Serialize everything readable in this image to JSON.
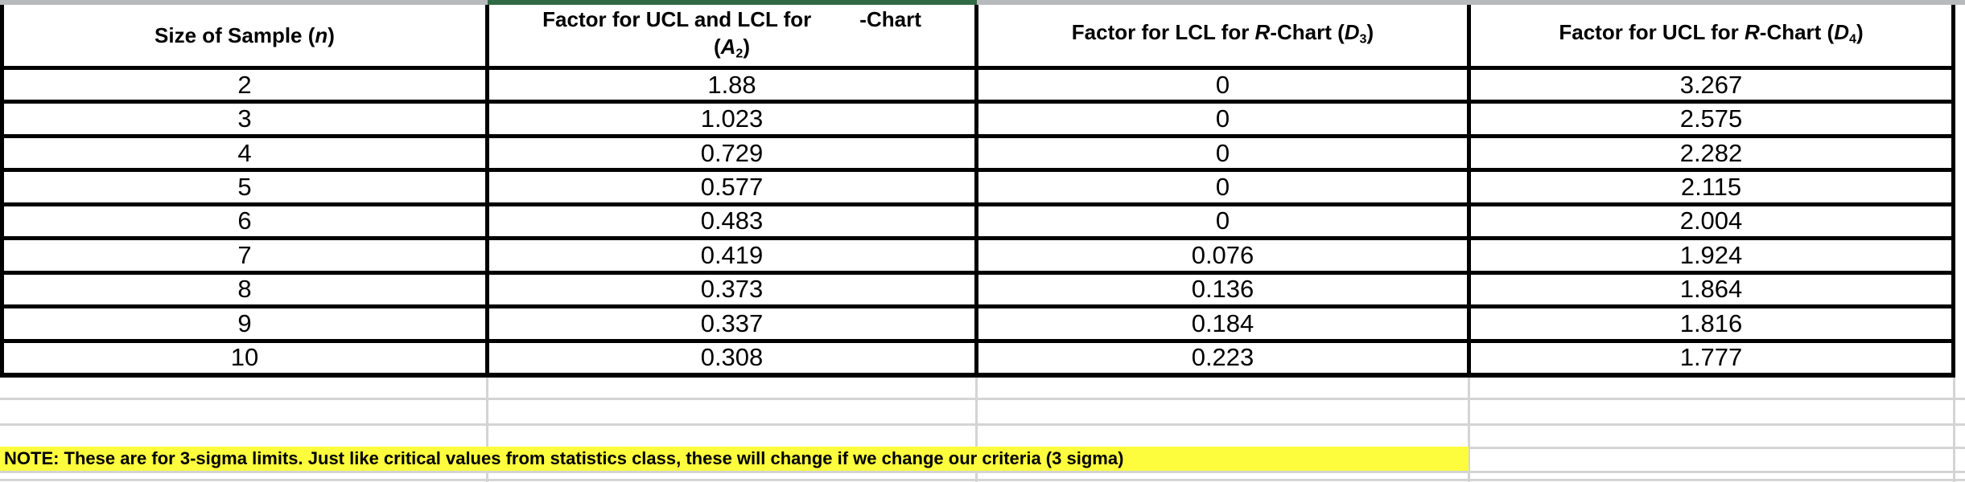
{
  "headers": {
    "col1": {
      "pre": "Size of Sample (",
      "var": "n",
      "post": ")"
    },
    "col2": {
      "line1_left": "Factor for UCL and LCL for",
      "line1_right": "-Chart",
      "line2_pre": "(",
      "line2_var": "A",
      "line2_sub": "2",
      "line2_post": ")"
    },
    "col3": {
      "pre": "Factor for LCL for ",
      "var1": "R",
      "mid": "-Chart (",
      "var2": "D",
      "sub": "3",
      "post": ")"
    },
    "col4": {
      "pre": "Factor for UCL for ",
      "var1": "R",
      "mid": "-Chart (",
      "var2": "D",
      "sub": "4",
      "post": ")"
    }
  },
  "rows": [
    {
      "n": "2",
      "a2": "1.88",
      "d3": "0",
      "d4": "3.267"
    },
    {
      "n": "3",
      "a2": "1.023",
      "d3": "0",
      "d4": "2.575"
    },
    {
      "n": "4",
      "a2": "0.729",
      "d3": "0",
      "d4": "2.282"
    },
    {
      "n": "5",
      "a2": "0.577",
      "d3": "0",
      "d4": "2.115"
    },
    {
      "n": "6",
      "a2": "0.483",
      "d3": "0",
      "d4": "2.004"
    },
    {
      "n": "7",
      "a2": "0.419",
      "d3": "0.076",
      "d4": "1.924"
    },
    {
      "n": "8",
      "a2": "0.373",
      "d3": "0.136",
      "d4": "1.864"
    },
    {
      "n": "9",
      "a2": "0.337",
      "d3": "0.184",
      "d4": "1.816"
    },
    {
      "n": "10",
      "a2": "0.308",
      "d3": "0.223",
      "d4": "1.777"
    }
  ],
  "note": {
    "text": "NOTE: These are for 3-sigma limits. Just like critical values from statistics class, these will change if we change our criteria (3 sigma)"
  },
  "colors": {
    "table_border": "#000000",
    "gridline": "#d4d4d4",
    "top_strip_gray": "#b9babc",
    "top_strip_green": "#2f6a45",
    "note_highlight": "#fdfd3e"
  }
}
